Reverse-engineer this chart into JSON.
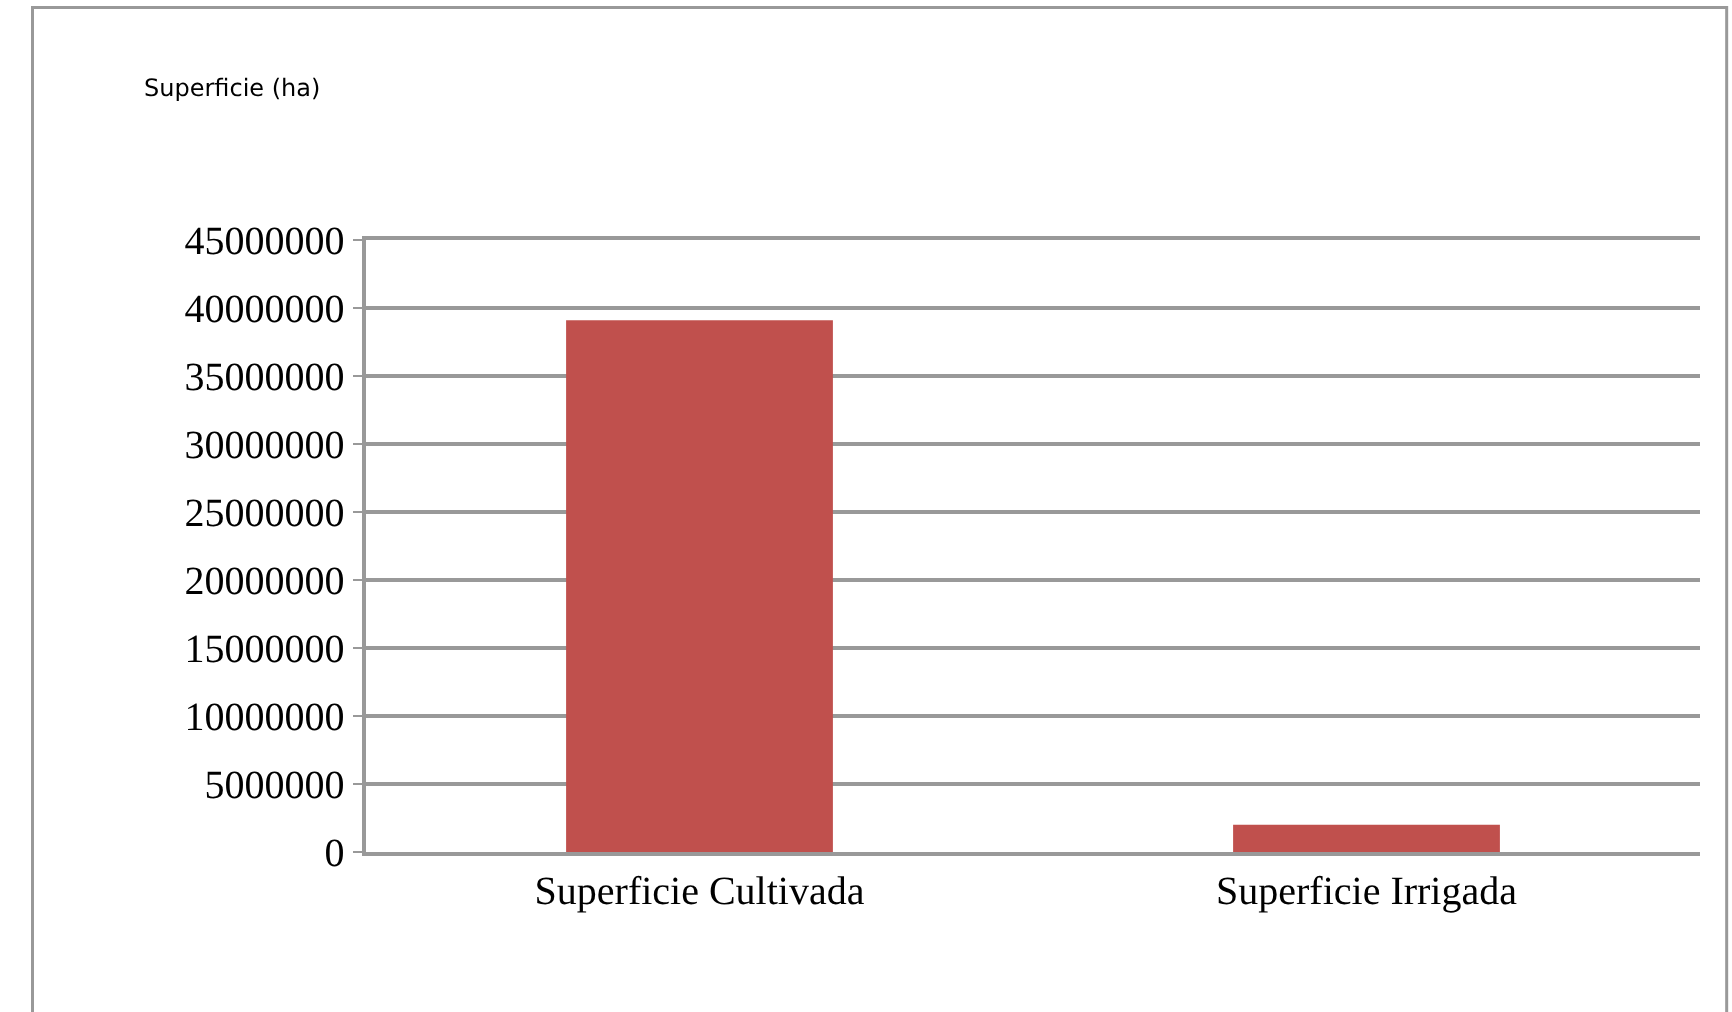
{
  "chart_data": {
    "type": "bar",
    "ylabel": "Superficie (ha)",
    "categories": [
      "Superficie Cultivada",
      "Superficie Irrigada"
    ],
    "values": [
      39100000,
      2000000
    ],
    "color": "#c0504d",
    "ylim": [
      0,
      45000000
    ],
    "yticks": [
      0,
      5000000,
      10000000,
      15000000,
      20000000,
      25000000,
      30000000,
      35000000,
      40000000,
      45000000
    ],
    "grid": "y"
  }
}
